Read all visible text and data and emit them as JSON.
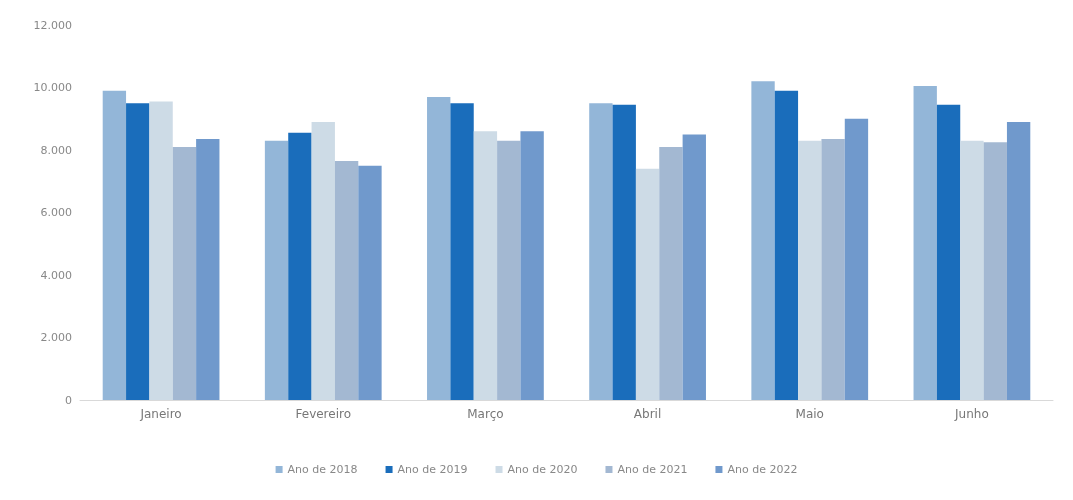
{
  "chart_data": {
    "type": "bar",
    "categories": [
      "Janeiro",
      "Fevereiro",
      "Março",
      "Abril",
      "Maio",
      "Junho"
    ],
    "series": [
      {
        "name": "Ano de 2018",
        "color": "#93b6d8",
        "values": [
          9900,
          8300,
          9700,
          9500,
          10200,
          10050
        ]
      },
      {
        "name": "Ano de 2019",
        "color": "#1a6dbb",
        "values": [
          9500,
          8550,
          9500,
          9450,
          9900,
          9450
        ]
      },
      {
        "name": "Ano de 2020",
        "color": "#cddbe6",
        "values": [
          9550,
          8900,
          8600,
          7400,
          8300,
          8300
        ]
      },
      {
        "name": "Ano de 2021",
        "color": "#a3b8d2",
        "values": [
          8100,
          7650,
          8300,
          8100,
          8350,
          8250
        ]
      },
      {
        "name": "Ano de 2022",
        "color": "#7099cc",
        "values": [
          8350,
          7500,
          8600,
          8500,
          9000,
          8900
        ]
      }
    ],
    "ylim": [
      0,
      12000
    ],
    "yticks": [
      {
        "value": 0,
        "label": "0"
      },
      {
        "value": 2000,
        "label": "2.000"
      },
      {
        "value": 4000,
        "label": "4.000"
      },
      {
        "value": 6000,
        "label": "6.000"
      },
      {
        "value": 8000,
        "label": "8.000"
      },
      {
        "value": 10000,
        "label": "10.000"
      },
      {
        "value": 12000,
        "label": "12.000"
      }
    ],
    "grid": false,
    "legend": "bottom"
  }
}
